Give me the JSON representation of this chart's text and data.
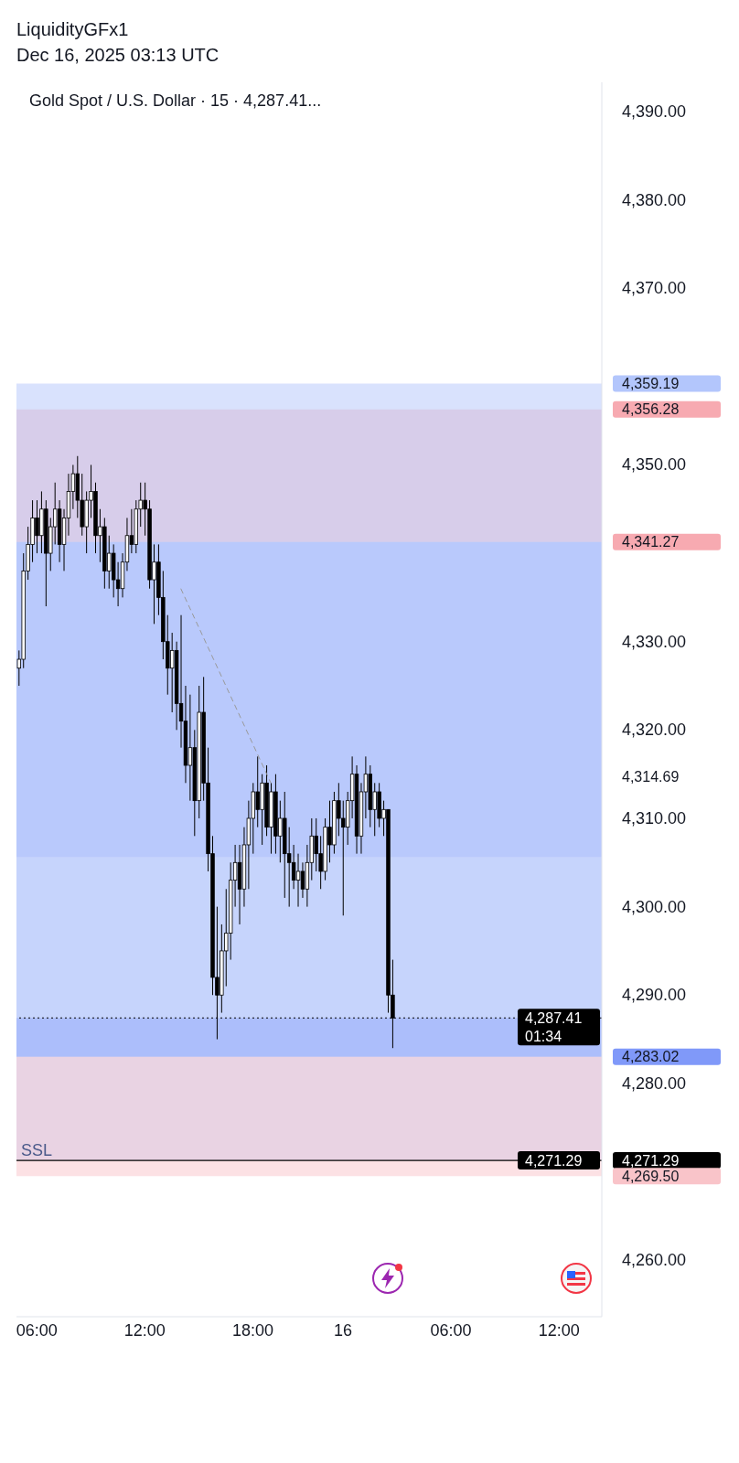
{
  "chart_data": {
    "type": "candlestick",
    "title": "Gold Spot / U.S. Dollar · 15 · 4,287.41...",
    "color": "#000000",
    "categories": [
      null,
      null,
      null,
      null,
      "06:00",
      null,
      null,
      null,
      null,
      null,
      null,
      null,
      null,
      null,
      null,
      null,
      null,
      null,
      null,
      null,
      null,
      null,
      null,
      null,
      null,
      null,
      null,
      null,
      "12:00",
      null,
      null,
      null,
      null,
      null,
      null,
      null,
      null,
      null,
      null,
      null,
      null,
      null,
      null,
      null,
      null,
      null,
      null,
      null,
      null,
      null,
      null,
      null,
      "18:00",
      null,
      null,
      null,
      null,
      null,
      null,
      null,
      null,
      null,
      null,
      null,
      null,
      null,
      null,
      null,
      null,
      null,
      null,
      null,
      "16",
      null,
      null,
      null,
      null,
      null,
      null,
      null,
      null,
      null,
      null,
      null,
      null,
      null,
      null,
      null,
      null,
      null,
      null,
      null,
      null,
      null,
      null,
      null,
      "06:00",
      null,
      null,
      null,
      null,
      null,
      null,
      null,
      null,
      null,
      null,
      null,
      null,
      null,
      null,
      null,
      null,
      null,
      null,
      null,
      null,
      null,
      null,
      null,
      "12:00",
      null,
      null,
      null,
      null,
      null,
      null,
      null,
      null,
      null
    ],
    "ohlc": [
      [
        4327,
        4329,
        4325,
        4328
      ],
      [
        4328,
        4340,
        4327,
        4338
      ],
      [
        4338,
        4343,
        4337,
        4341
      ],
      [
        4341,
        4346,
        4339,
        4344
      ],
      [
        4344,
        4346,
        4340,
        4342
      ],
      [
        4342,
        4347,
        4340,
        4345
      ],
      [
        4345,
        4346,
        4334,
        4340
      ],
      [
        4340,
        4344,
        4338,
        4343
      ],
      [
        4343,
        4348,
        4341,
        4345
      ],
      [
        4345,
        4346,
        4339,
        4341
      ],
      [
        4341,
        4345,
        4338,
        4344
      ],
      [
        4344,
        4349,
        4342,
        4347
      ],
      [
        4347,
        4350,
        4345,
        4349
      ],
      [
        4349,
        4351,
        4344,
        4346
      ],
      [
        4346,
        4349,
        4342,
        4343
      ],
      [
        4343,
        4347,
        4340,
        4346
      ],
      [
        4346,
        4350,
        4344,
        4347
      ],
      [
        4347,
        4348,
        4340,
        4342
      ],
      [
        4342,
        4345,
        4339,
        4343
      ],
      [
        4343,
        4344,
        4336,
        4338
      ],
      [
        4338,
        4342,
        4336,
        4340
      ],
      [
        4340,
        4341,
        4335,
        4337
      ],
      [
        4337,
        4339,
        4334,
        4336
      ],
      [
        4336,
        4340,
        4335,
        4339
      ],
      [
        4339,
        4344,
        4338,
        4342
      ],
      [
        4342,
        4345,
        4340,
        4341
      ],
      [
        4341,
        4346,
        4340,
        4345
      ],
      [
        4345,
        4348,
        4343,
        4346
      ],
      [
        4346,
        4348,
        4342,
        4345
      ],
      [
        4345,
        4346,
        4336,
        4337
      ],
      [
        4337,
        4341,
        4332,
        4339
      ],
      [
        4339,
        4341,
        4333,
        4335
      ],
      [
        4335,
        4338,
        4328,
        4330
      ],
      [
        4330,
        4333,
        4324,
        4327
      ],
      [
        4327,
        4331,
        4322,
        4329
      ],
      [
        4329,
        4330,
        4320,
        4323
      ],
      [
        4323,
        4333,
        4318,
        4321
      ],
      [
        4321,
        4325,
        4314,
        4316
      ],
      [
        4316,
        4324,
        4312,
        4318
      ],
      [
        4318,
        4320,
        4308,
        4312
      ],
      [
        4312,
        4325,
        4310,
        4322
      ],
      [
        4322,
        4326,
        4312,
        4314
      ],
      [
        4314,
        4318,
        4304,
        4306
      ],
      [
        4306,
        4308,
        4290,
        4292
      ],
      [
        4292,
        4300,
        4285,
        4290
      ],
      [
        4290,
        4298,
        4288,
        4295
      ],
      [
        4295,
        4302,
        4291,
        4297
      ],
      [
        4297,
        4305,
        4294,
        4303
      ],
      [
        4303,
        4307,
        4300,
        4305
      ],
      [
        4305,
        4307,
        4298,
        4302
      ],
      [
        4302,
        4309,
        4300,
        4307
      ],
      [
        4307,
        4312,
        4302,
        4310
      ],
      [
        4310,
        4314,
        4306,
        4313
      ],
      [
        4313,
        4317,
        4309,
        4311
      ],
      [
        4311,
        4315,
        4307,
        4314
      ],
      [
        4314,
        4316,
        4308,
        4309
      ],
      [
        4309,
        4314,
        4306,
        4313
      ],
      [
        4313,
        4315,
        4306,
        4308
      ],
      [
        4308,
        4312,
        4305,
        4310
      ],
      [
        4310,
        4313,
        4301,
        4306
      ],
      [
        4306,
        4309,
        4300,
        4305
      ],
      [
        4305,
        4307,
        4302,
        4303
      ],
      [
        4303,
        4306,
        4300,
        4304
      ],
      [
        4304,
        4305,
        4301,
        4302
      ],
      [
        4302,
        4307,
        4300,
        4305
      ],
      [
        4305,
        4310,
        4303,
        4308
      ],
      [
        4308,
        4310,
        4304,
        4306
      ],
      [
        4306,
        4308,
        4302,
        4304
      ],
      [
        4304,
        4310,
        4303,
        4309
      ],
      [
        4309,
        4312,
        4305,
        4307
      ],
      [
        4307,
        4313,
        4306,
        4312
      ],
      [
        4312,
        4314,
        4308,
        4310
      ],
      [
        4310,
        4312,
        4299,
        4309
      ],
      [
        4309,
        4313,
        4307,
        4312
      ],
      [
        4312,
        4317,
        4310,
        4315
      ],
      [
        4315,
        4316,
        4306,
        4308
      ],
      [
        4308,
        4314,
        4306,
        4313
      ],
      [
        4313,
        4317,
        4310,
        4315
      ],
      [
        4315,
        4316,
        4309,
        4311
      ],
      [
        4311,
        4314,
        4308,
        4313
      ],
      [
        4313,
        4314,
        4309,
        4310
      ],
      [
        4310,
        4312,
        4308,
        4311
      ],
      [
        4311,
        4311,
        4288,
        4290
      ],
      [
        4290,
        4294,
        4284,
        4287.41
      ],
      null,
      null,
      null,
      null,
      null,
      null,
      null,
      null,
      null,
      null,
      null,
      null,
      null,
      null,
      null,
      null,
      null,
      null,
      null,
      null,
      null,
      null,
      null,
      null,
      null,
      null,
      null,
      null,
      null,
      null,
      null,
      null,
      null,
      null,
      null,
      null,
      null,
      null,
      null,
      null,
      null,
      null,
      null,
      null,
      null,
      null
    ],
    "series": [
      {
        "type": "line",
        "color": "#999999",
        "line_style": "dashed",
        "values": [
          null,
          null,
          null,
          null,
          null,
          null,
          null,
          null,
          null,
          null,
          null,
          null,
          null,
          null,
          null,
          null,
          null,
          null,
          null,
          null,
          null,
          null,
          null,
          null,
          null,
          null,
          null,
          null,
          null,
          null,
          null,
          null,
          null,
          null,
          null,
          null,
          4336,
          null,
          null,
          null,
          null,
          null,
          null,
          null,
          null,
          null,
          null,
          null,
          null,
          null,
          null,
          null,
          null,
          null,
          null,
          null,
          4314,
          null,
          null,
          null,
          null,
          null,
          null,
          null,
          null,
          null,
          null,
          null,
          null,
          null,
          null,
          null,
          null,
          null,
          null,
          null,
          null,
          null,
          null,
          null,
          null,
          null,
          null,
          null,
          null,
          null,
          null,
          null,
          null,
          null,
          null,
          null,
          null,
          null,
          null,
          null,
          null,
          null,
          null,
          null,
          null,
          null,
          null,
          null,
          null,
          null,
          null,
          null,
          null,
          null,
          null,
          null,
          null,
          null,
          null,
          null,
          null,
          null,
          null,
          null,
          null,
          null,
          null,
          null,
          null,
          null,
          null,
          null,
          null,
          null
        ]
      }
    ],
    "ylim": [
      4253.6,
      4393.3
    ],
    "yticks": [
      {
        "value": 4260,
        "label": "4,260.00"
      },
      {
        "value": 4280,
        "label": "4,280.00"
      },
      {
        "value": 4290,
        "label": "4,290.00"
      },
      {
        "value": 4300,
        "label": "4,300.00"
      },
      {
        "value": 4310,
        "label": "4,310.00"
      },
      {
        "value": 4320,
        "label": "4,320.00"
      },
      {
        "value": 4330,
        "label": "4,330.00"
      },
      {
        "value": 4350,
        "label": "4,350.00"
      },
      {
        "value": 4359.19,
        "label": "4,359.19"
      },
      {
        "value": 4356.28,
        "label": "4,356.28"
      },
      {
        "value": 4341.27,
        "label": "4,341.27"
      },
      {
        "value": 4314.69,
        "label": "4,314.69"
      },
      {
        "value": 4283.02,
        "label": "4,283.02"
      },
      {
        "value": 4271.29,
        "label": "4,271.29"
      },
      {
        "value": 4269.5,
        "label": "4,269.50"
      },
      {
        "value": 4370,
        "label": "4,370.00"
      },
      {
        "value": 4380,
        "label": "4,380.00"
      },
      {
        "value": 4390,
        "label": "4,390.00"
      }
    ],
    "bands": [
      {
        "axis": "y",
        "from": 4341.27,
        "to": 4356.28,
        "color": "#f7aab1"
      },
      {
        "axis": "y",
        "from": 4305.6,
        "to": 4341.27,
        "color": "#8099f9"
      },
      {
        "axis": "y",
        "from": 4271.29,
        "to": 4305.6,
        "color": "#b3c6fc",
        "label": "SSL"
      },
      {
        "axis": "y",
        "from": 4287.41,
        "to": 4359.19,
        "color": "#b3c6fc"
      },
      {
        "axis": "y",
        "from": 4283.02,
        "to": 4287.41,
        "color": "#8099f9"
      },
      {
        "axis": "y",
        "from": 4269.5,
        "to": 4283.02,
        "color": "#f9c4c9"
      }
    ],
    "ref_lines": [
      {
        "axis": "y",
        "value": 4287.41,
        "color": "#000000",
        "line_style": "dotted",
        "label": "4,287.41"
      },
      {
        "axis": "y",
        "value": 4271.29,
        "color": "#000000",
        "line_style": "solid",
        "label": "4,271.29"
      }
    ],
    "annotations": [
      "LiquidityGFx1",
      "Dec 16, 2025 03:13 UTC",
      "01:34"
    ]
  }
}
